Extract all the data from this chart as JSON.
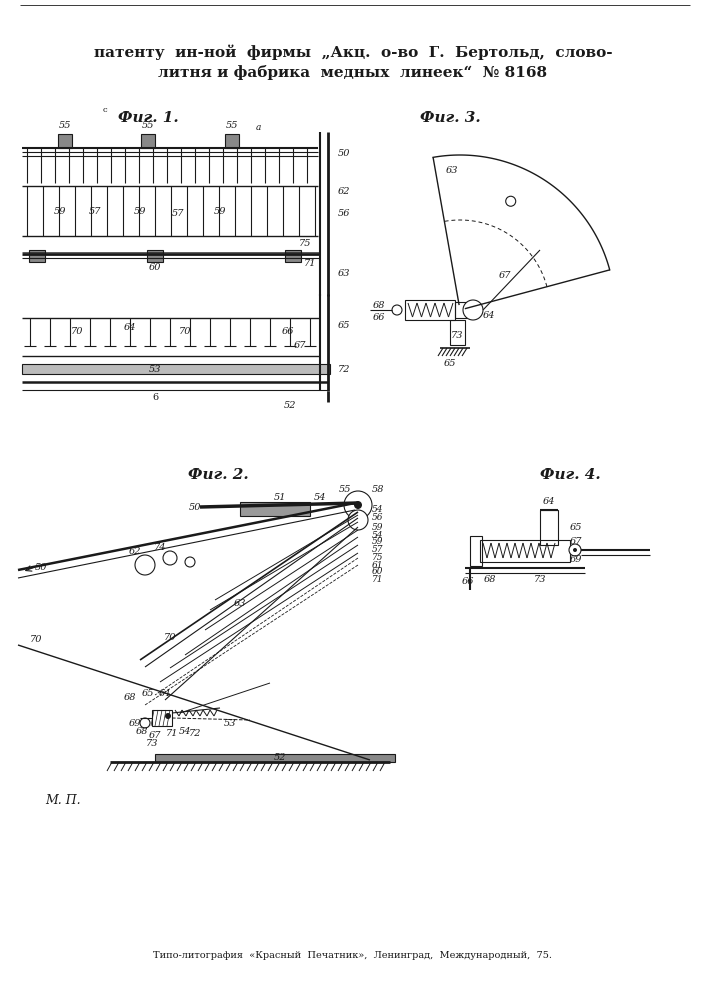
{
  "bg_color": "#ffffff",
  "line_color": "#1a1a1a",
  "title_line1": "патенту  ин-ной  фирмы  „Акц.  о-во  Г.  Бертольд,  слово-",
  "title_line2": "литня и фабрика  медных  линеек“  № 8168",
  "bottom_text": "Типо-литография  «Красный  Печатник»,  Ленинград,  Международный,  75.",
  "mp_label": "М. П."
}
